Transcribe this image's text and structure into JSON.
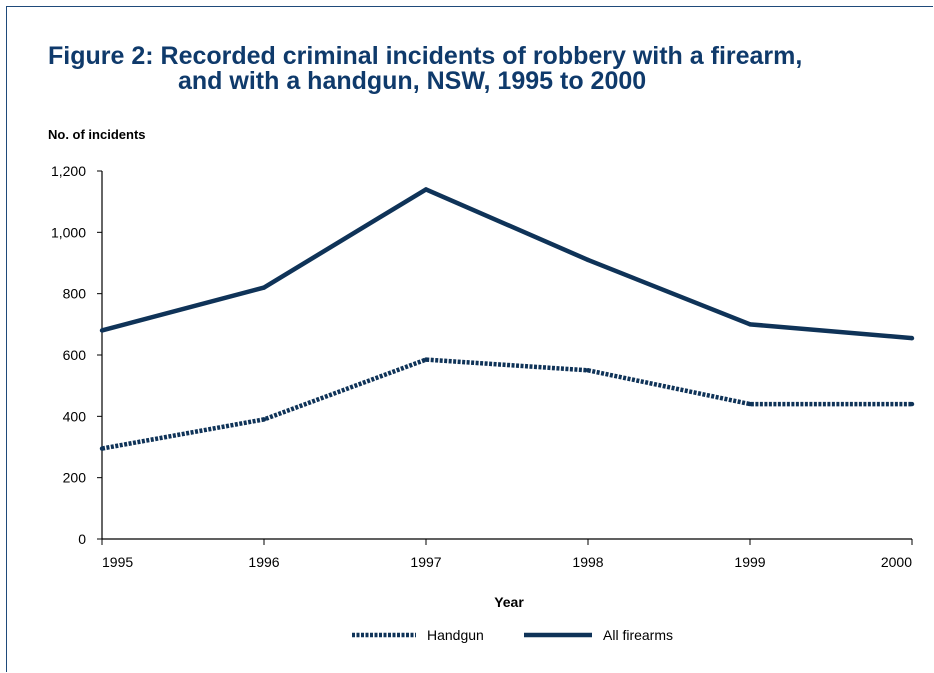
{
  "title": {
    "line1": "Figure 2:  Recorded criminal incidents of robbery with a firearm,",
    "line2": "and with a handgun, NSW, 1995 to 2000"
  },
  "colors": {
    "title": "#0f3a6b",
    "series": "#0f3358"
  },
  "chart_data": {
    "type": "line",
    "ylabel": "No. of incidents",
    "xlabel": "Year",
    "x": [
      "1995",
      "1996",
      "1997",
      "1998",
      "1999",
      "2000"
    ],
    "ylim": [
      0,
      1200
    ],
    "yticks": [
      0,
      200,
      400,
      600,
      800,
      1000,
      1200
    ],
    "ytick_labels": [
      "0",
      "200",
      "400",
      "600",
      "800",
      "1,000",
      "1,200"
    ],
    "grid": false,
    "legend_position": "bottom",
    "series": [
      {
        "name": "Handgun",
        "style": "dotted",
        "values": [
          295,
          390,
          585,
          550,
          440,
          440
        ]
      },
      {
        "name": "All firearms",
        "style": "solid",
        "values": [
          680,
          820,
          1140,
          910,
          700,
          655
        ]
      }
    ]
  }
}
